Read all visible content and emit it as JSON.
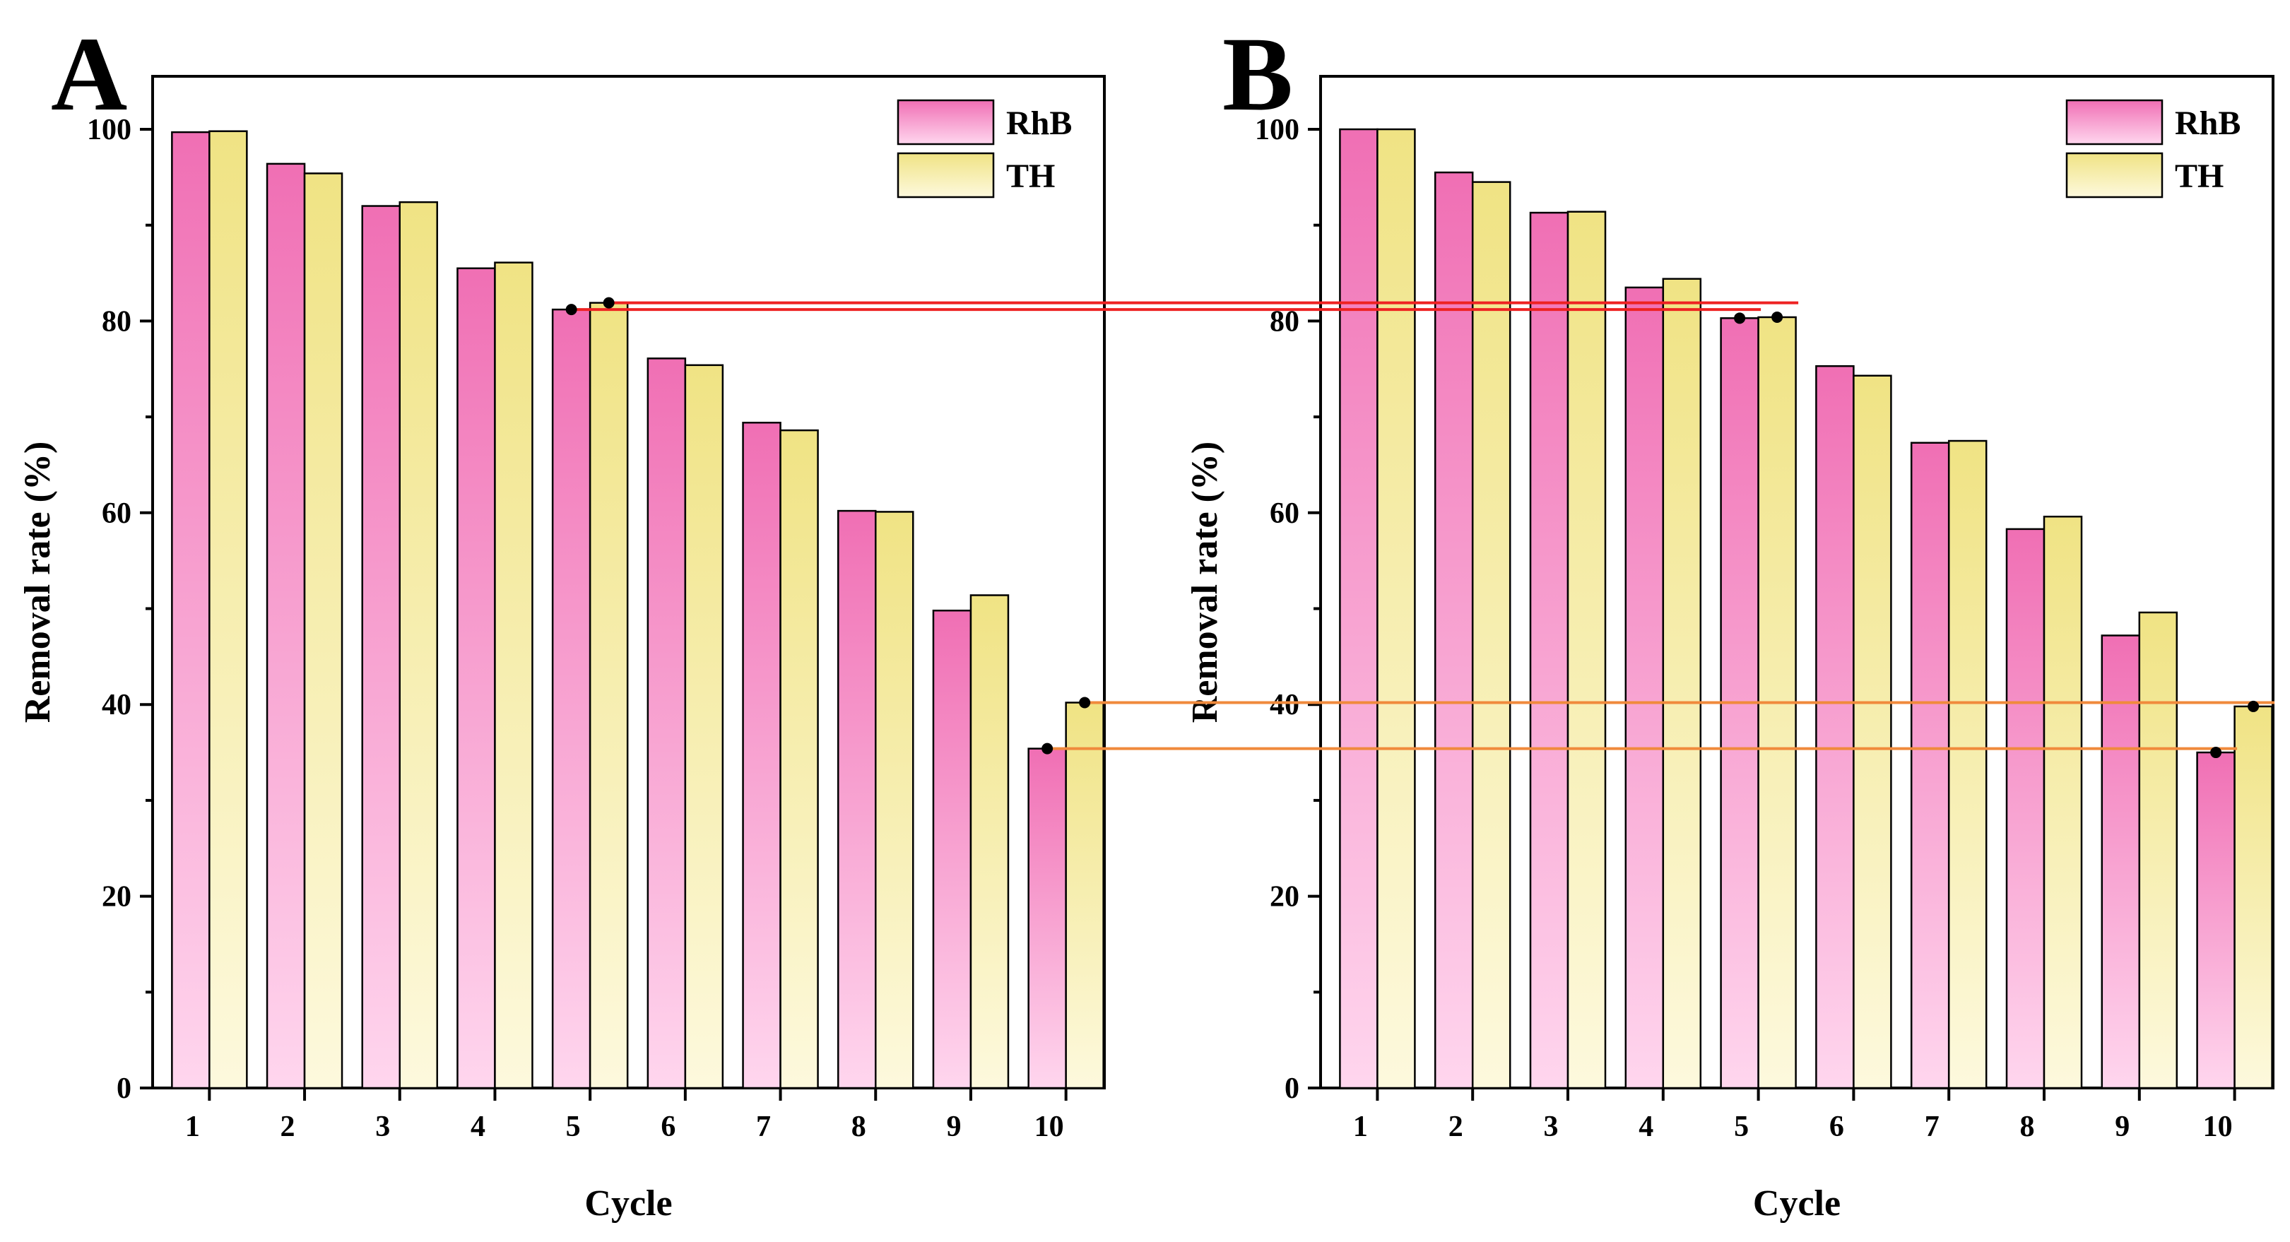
{
  "chart_data": [
    {
      "panel": "A",
      "type": "bar",
      "categories": [
        "1",
        "2",
        "3",
        "4",
        "5",
        "6",
        "7",
        "8",
        "9",
        "10"
      ],
      "series": [
        {
          "name": "RhB",
          "values": [
            99.7,
            96.4,
            92.0,
            85.5,
            81.2,
            76.1,
            69.4,
            60.2,
            49.8,
            35.4
          ]
        },
        {
          "name": "TH",
          "values": [
            99.8,
            95.4,
            92.4,
            86.1,
            81.9,
            75.4,
            68.6,
            60.1,
            51.4,
            40.2
          ]
        }
      ],
      "xlabel": "Cycle",
      "ylabel": "Removal rate (%)",
      "ylim": [
        0,
        100
      ],
      "yticks": [
        0,
        20,
        40,
        60,
        80,
        100
      ],
      "legend": "top-right"
    },
    {
      "panel": "B",
      "type": "bar",
      "categories": [
        "1",
        "2",
        "3",
        "4",
        "5",
        "6",
        "7",
        "8",
        "9",
        "10"
      ],
      "series": [
        {
          "name": "RhB",
          "values": [
            100.0,
            95.5,
            91.3,
            83.5,
            80.3,
            75.3,
            67.3,
            58.3,
            47.2,
            35.0
          ]
        },
        {
          "name": "TH",
          "values": [
            100.0,
            94.5,
            91.4,
            84.4,
            80.4,
            74.3,
            67.5,
            59.6,
            49.6,
            39.8
          ]
        }
      ],
      "xlabel": "Cycle",
      "ylabel": "Removal rate (%)",
      "ylim": [
        0,
        100
      ],
      "yticks": [
        0,
        20,
        40,
        60,
        80,
        100
      ],
      "legend": "top-right"
    }
  ],
  "connectors": [
    {
      "from": {
        "panel": "A",
        "cycle": "5",
        "series": "RhB"
      },
      "to": {
        "panel": "B",
        "cycle": "5",
        "series": "RhB"
      },
      "color": "#ee2222"
    },
    {
      "from": {
        "panel": "A",
        "cycle": "5",
        "series": "TH"
      },
      "to": {
        "panel": "B",
        "cycle": "5",
        "series": "TH"
      },
      "color": "#ee2222"
    },
    {
      "from": {
        "panel": "A",
        "cycle": "10",
        "series": "TH"
      },
      "to": {
        "panel": "B",
        "cycle": "10",
        "series": "TH"
      },
      "color": "#f08a3c"
    },
    {
      "from": {
        "panel": "A",
        "cycle": "10",
        "series": "RhB"
      },
      "to": {
        "panel": "B",
        "cycle": "10",
        "series": "RhB"
      },
      "color": "#f08a3c"
    }
  ],
  "colors": {
    "rhb_top": "#f06fb4",
    "rhb_bottom": "#ffd6ee",
    "th_top": "#f0e384",
    "th_bottom": "#fdf9dd"
  }
}
